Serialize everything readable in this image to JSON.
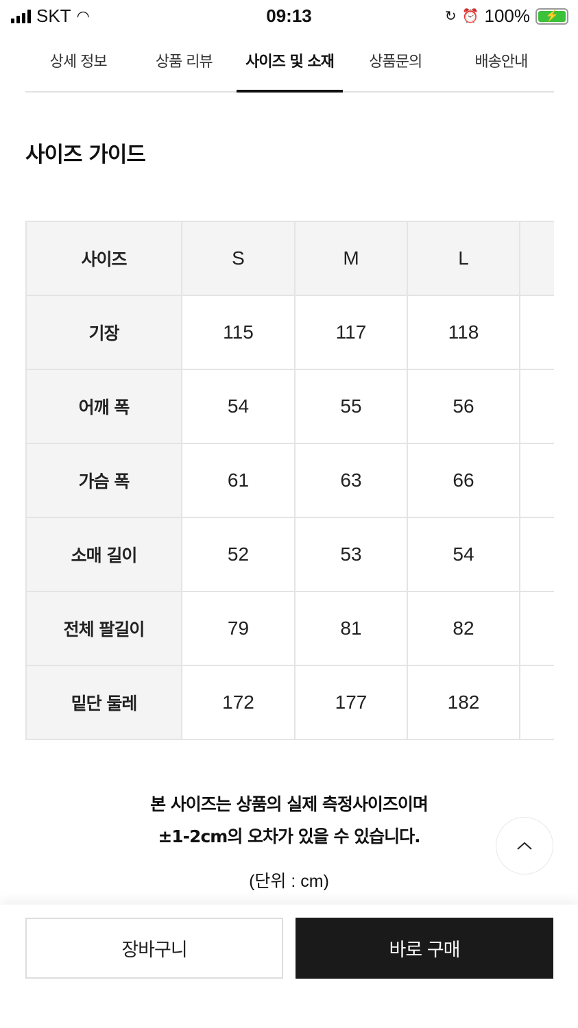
{
  "status_bar": {
    "carrier": "SKT",
    "time": "09:13",
    "battery": "100%"
  },
  "tabs": [
    {
      "label": "상세 정보"
    },
    {
      "label": "상품 리뷰"
    },
    {
      "label": "사이즈 및 소재",
      "active": true
    },
    {
      "label": "상품문의"
    },
    {
      "label": "배송안내"
    }
  ],
  "title": "사이즈 가이드",
  "table": {
    "header": [
      "사이즈",
      "S",
      "M",
      "L",
      ""
    ],
    "rows": [
      [
        "기장",
        "115",
        "117",
        "118",
        ""
      ],
      [
        "어깨 폭",
        "54",
        "55",
        "56",
        ""
      ],
      [
        "가슴 폭",
        "61",
        "63",
        "66",
        ""
      ],
      [
        "소매 길이",
        "52",
        "53",
        "54",
        ""
      ],
      [
        "전체 팔길이",
        "79",
        "81",
        "82",
        ""
      ],
      [
        "밑단 둘레",
        "172",
        "177",
        "182",
        ""
      ]
    ]
  },
  "note": {
    "line1": "본 사이즈는 상품의 실제 측정사이즈이며",
    "line2": "±1-2cm의 오차가 있을 수 있습니다.",
    "unit": "(단위 : cm)"
  },
  "bottom": {
    "cart_label": "장바구니",
    "buy_label": "바로 구매"
  }
}
